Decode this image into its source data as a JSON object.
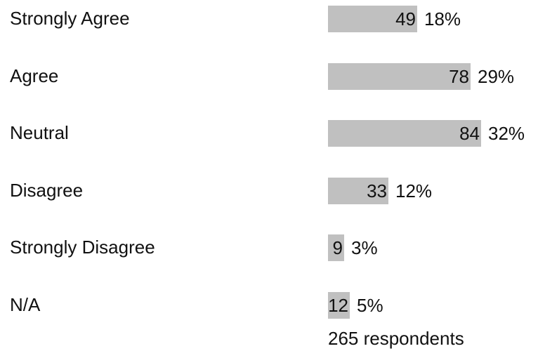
{
  "chart_data": {
    "type": "bar",
    "orientation": "horizontal",
    "categories": [
      "Strongly Agree",
      "Agree",
      "Neutral",
      "Disagree",
      "Strongly Disagree",
      "N/A"
    ],
    "values": [
      49,
      78,
      84,
      33,
      9,
      12
    ],
    "percentages": [
      "18%",
      "29%",
      "32%",
      "12%",
      "3%",
      "5%"
    ],
    "bar_color": "#c0c0c0",
    "footer": "265 respondents"
  }
}
